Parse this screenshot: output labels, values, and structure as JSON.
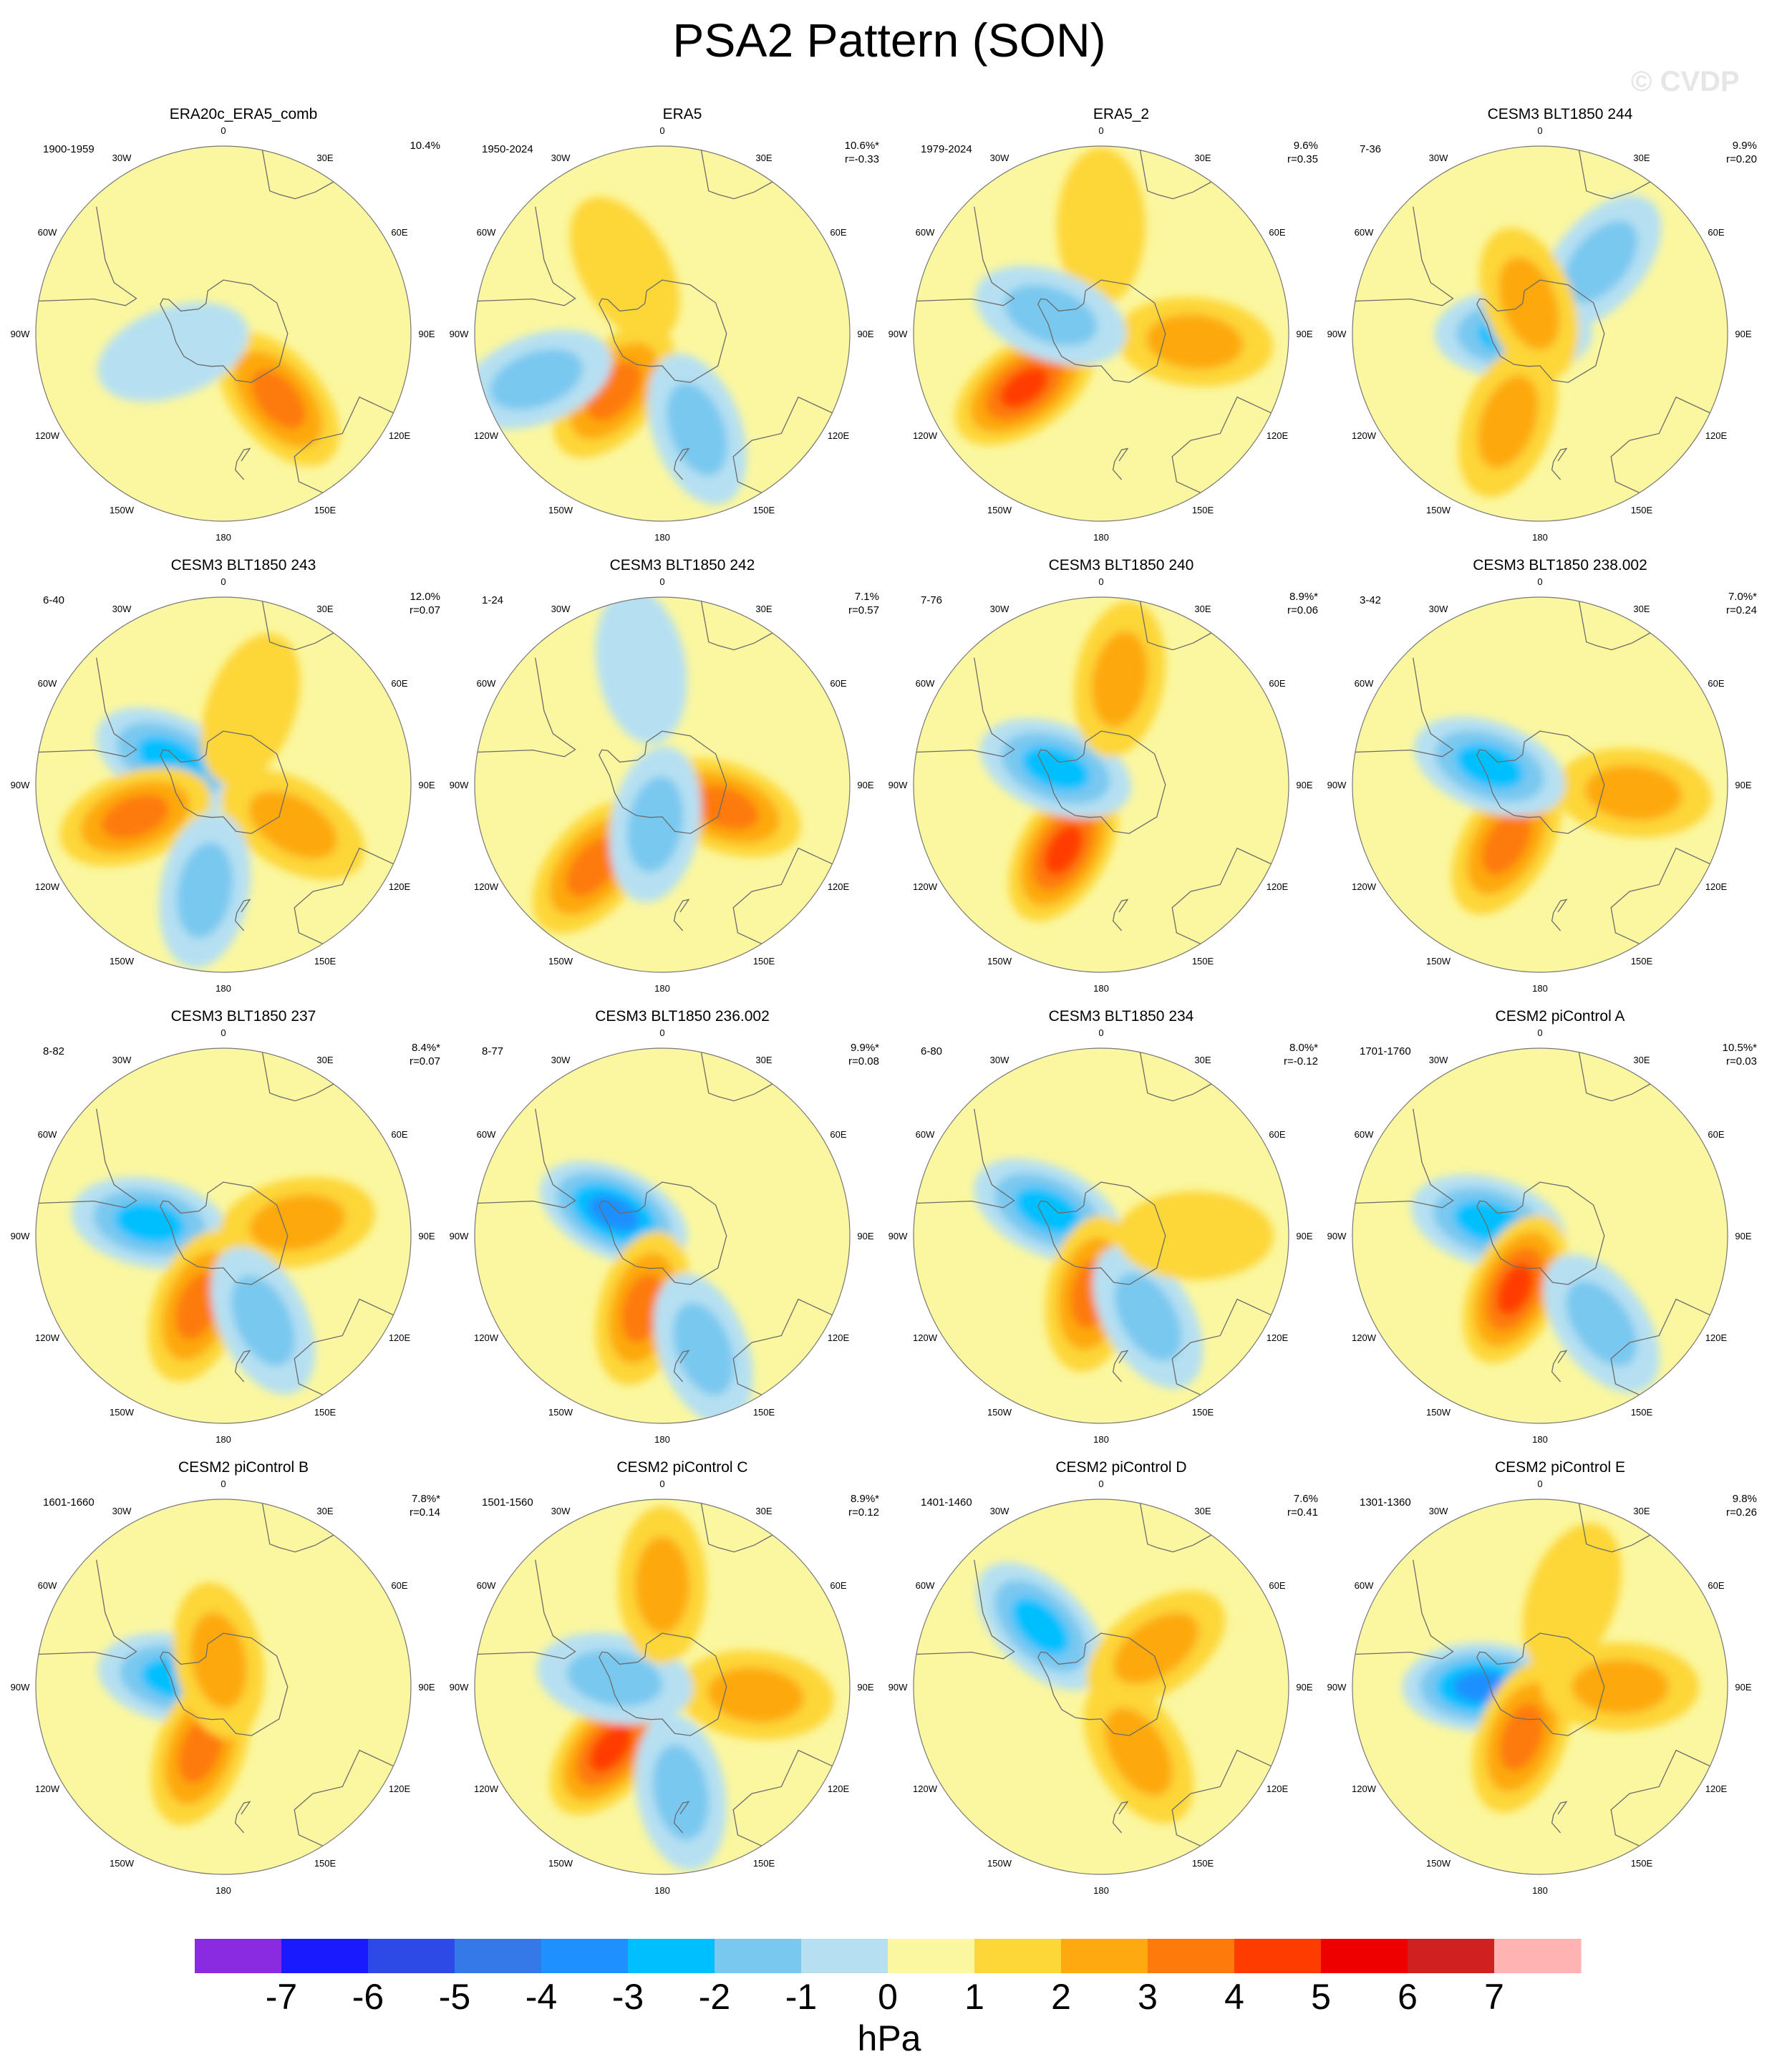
{
  "title": "PSA2 Pattern (SON)",
  "watermark": "© CVDP",
  "colorbar": {
    "colors": [
      "#8a2be2",
      "#1a1aff",
      "#2e4ae6",
      "#3579e8",
      "#1e90ff",
      "#00bfff",
      "#79c8f0",
      "#b6e0f2",
      "#fbf7a0",
      "#fdd637",
      "#fda90f",
      "#fd7a0b",
      "#ff3c00",
      "#ee0000",
      "#d02020",
      "#ffb3b3"
    ],
    "labels": [
      "-7",
      "-6",
      "-5",
      "-4",
      "-3",
      "-2",
      "-1",
      "0",
      "1",
      "2",
      "3",
      "4",
      "5",
      "6",
      "7"
    ],
    "units": "hPa"
  },
  "lon_labels": [
    "0",
    "30E",
    "60E",
    "90E",
    "120E",
    "150E",
    "180",
    "150W",
    "120W",
    "90W",
    "60W",
    "30W"
  ],
  "chart_data": {
    "type": "heatmap",
    "title": "PSA2 Pattern (SON)",
    "colorbar_units": "hPa",
    "colorbar_levels": [
      -7,
      -6,
      -5,
      -4,
      -3,
      -2,
      -1,
      0,
      1,
      2,
      3,
      4,
      5,
      6,
      7
    ],
    "panels": [
      {
        "name": "ERA20c_ERA5_comb",
        "years": "1900-1959",
        "pct": "10.4%",
        "r": "",
        "blobs": [
          {
            "lon": 140,
            "lat": -58,
            "v": 3
          },
          {
            "lon": -110,
            "lat": -70,
            "v": -1
          }
        ]
      },
      {
        "name": "ERA5",
        "years": "1950-2024",
        "pct": "10.6%*",
        "r": "r=-0.33",
        "blobs": [
          {
            "lon": -140,
            "lat": -62,
            "v": 3
          },
          {
            "lon": 160,
            "lat": -52,
            "v": -2
          },
          {
            "lon": -110,
            "lat": -40,
            "v": -2
          },
          {
            "lon": -30,
            "lat": -62,
            "v": 1
          }
        ]
      },
      {
        "name": "ERA5_2",
        "years": "1979-2024",
        "pct": "9.6%",
        "r": "r=0.35",
        "blobs": [
          {
            "lon": -125,
            "lat": -55,
            "v": 4
          },
          {
            "lon": 95,
            "lat": -55,
            "v": 2
          },
          {
            "lon": 0,
            "lat": -50,
            "v": 1
          },
          {
            "lon": -70,
            "lat": -70,
            "v": -2
          }
        ]
      },
      {
        "name": "CESM3 BLT1850 244",
        "years": "7-36",
        "pct": "9.9%",
        "r": "r=0.20",
        "blobs": [
          {
            "lon": -90,
            "lat": -80,
            "v": -3
          },
          {
            "lon": -160,
            "lat": -55,
            "v": 2
          },
          {
            "lon": 40,
            "lat": -55,
            "v": -2
          },
          {
            "lon": -20,
            "lat": -78,
            "v": 2
          }
        ]
      },
      {
        "name": "CESM3 BLT1850 243",
        "years": "6-40",
        "pct": "12.0%",
        "r": "r=0.07",
        "blobs": [
          {
            "lon": -65,
            "lat": -68,
            "v": -3
          },
          {
            "lon": -110,
            "lat": -55,
            "v": 3
          },
          {
            "lon": 120,
            "lat": -60,
            "v": 2
          },
          {
            "lon": 20,
            "lat": -60,
            "v": 1
          },
          {
            "lon": -170,
            "lat": -50,
            "v": -2
          }
        ]
      },
      {
        "name": "CESM3 BLT1850 242",
        "years": "1-24",
        "pct": "7.1%",
        "r": "r=0.57",
        "blobs": [
          {
            "lon": -140,
            "lat": -50,
            "v": 3
          },
          {
            "lon": 110,
            "lat": -65,
            "v": 3
          },
          {
            "lon": -170,
            "lat": -75,
            "v": -2
          },
          {
            "lon": -10,
            "lat": -45,
            "v": -1
          }
        ]
      },
      {
        "name": "CESM3 BLT1850 240",
        "years": "7-76",
        "pct": "8.9%*",
        "r": "r=0.06",
        "blobs": [
          {
            "lon": -150,
            "lat": -62,
            "v": 4
          },
          {
            "lon": -70,
            "lat": -72,
            "v": -3
          },
          {
            "lon": 10,
            "lat": -50,
            "v": 2
          }
        ]
      },
      {
        "name": "CESM3 BLT1850 238.002",
        "years": "3-42",
        "pct": "7.0%*",
        "r": "r=0.24",
        "blobs": [
          {
            "lon": -150,
            "lat": -65,
            "v": 3
          },
          {
            "lon": 95,
            "lat": -55,
            "v": 2
          },
          {
            "lon": -70,
            "lat": -70,
            "v": -3
          }
        ]
      },
      {
        "name": "CESM3 BLT1850 237",
        "years": "8-82",
        "pct": "8.4%*",
        "r": "r=0.07",
        "blobs": [
          {
            "lon": -80,
            "lat": -62,
            "v": -3
          },
          {
            "lon": -160,
            "lat": -62,
            "v": 3
          },
          {
            "lon": 80,
            "lat": -62,
            "v": 2
          },
          {
            "lon": 155,
            "lat": -55,
            "v": -2
          }
        ]
      },
      {
        "name": "CESM3 BLT1850 236.002",
        "years": "8-77",
        "pct": "9.9%*",
        "r": "r=0.08",
        "blobs": [
          {
            "lon": -65,
            "lat": -70,
            "v": -4
          },
          {
            "lon": -165,
            "lat": -62,
            "v": 3
          },
          {
            "lon": 160,
            "lat": -45,
            "v": -2
          }
        ]
      },
      {
        "name": "CESM3 BLT1850 234",
        "years": "6-80",
        "pct": "8.0%*",
        "r": "r=-0.12",
        "blobs": [
          {
            "lon": -65,
            "lat": -68,
            "v": -3
          },
          {
            "lon": -170,
            "lat": -68,
            "v": 3
          },
          {
            "lon": 150,
            "lat": -55,
            "v": -2
          },
          {
            "lon": 90,
            "lat": -55,
            "v": 1
          }
        ]
      },
      {
        "name": "CESM2 piControl A",
        "years": "1701-1760",
        "pct": "10.5%*",
        "r": "r=0.03",
        "blobs": [
          {
            "lon": -75,
            "lat": -70,
            "v": -3
          },
          {
            "lon": -155,
            "lat": -68,
            "v": 4
          },
          {
            "lon": 145,
            "lat": -50,
            "v": -2
          }
        ]
      },
      {
        "name": "CESM2 piControl B",
        "years": "1601-1660",
        "pct": "7.8%*",
        "r": "r=0.14",
        "blobs": [
          {
            "lon": -80,
            "lat": -72,
            "v": -3
          },
          {
            "lon": -160,
            "lat": -65,
            "v": 3
          },
          {
            "lon": -10,
            "lat": -80,
            "v": 2
          }
        ]
      },
      {
        "name": "CESM2 piControl C",
        "years": "1501-1560",
        "pct": "8.9%*",
        "r": "r=0.12",
        "blobs": [
          {
            "lon": -140,
            "lat": -60,
            "v": 4
          },
          {
            "lon": 95,
            "lat": -55,
            "v": 2
          },
          {
            "lon": -80,
            "lat": -72,
            "v": -2
          },
          {
            "lon": 0,
            "lat": -52,
            "v": 2
          },
          {
            "lon": 170,
            "lat": -50,
            "v": -2
          }
        ]
      },
      {
        "name": "CESM2 piControl D",
        "years": "1401-1460",
        "pct": "7.6%",
        "r": "r=0.41",
        "blobs": [
          {
            "lon": -45,
            "lat": -58,
            "v": -3
          },
          {
            "lon": 150,
            "lat": -62,
            "v": 2
          },
          {
            "lon": 55,
            "lat": -65,
            "v": 2
          }
        ]
      },
      {
        "name": "CESM2 piControl E",
        "years": "1301-1360",
        "pct": "9.8%",
        "r": "r=0.26",
        "blobs": [
          {
            "lon": -90,
            "lat": -68,
            "v": -4
          },
          {
            "lon": -160,
            "lat": -70,
            "v": 3
          },
          {
            "lon": 90,
            "lat": -60,
            "v": 2
          },
          {
            "lon": 20,
            "lat": -55,
            "v": 1
          }
        ]
      }
    ]
  }
}
